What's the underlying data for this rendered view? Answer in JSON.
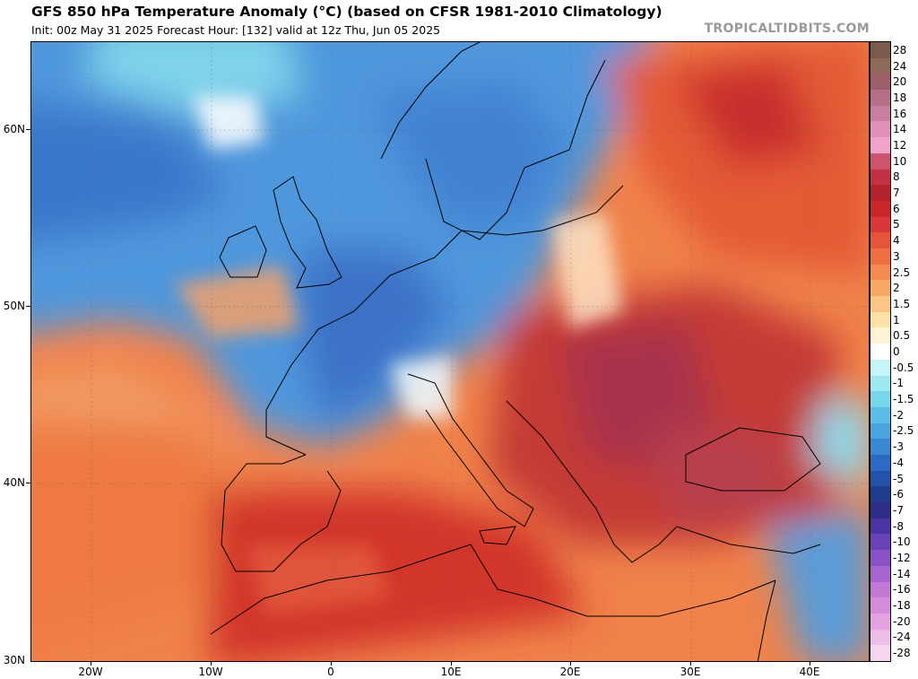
{
  "header": {
    "title": "GFS 850 hPa Temperature Anomaly (°C) (based on CFSR 1981-2010 Climatology)",
    "subtitle": "Init: 00z May 31 2025   Forecast Hour: [132]   valid at 12z Thu, Jun 05 2025",
    "brand": "TROPICALTIDBITS.COM"
  },
  "map": {
    "lat_labels": [
      "60N",
      "50N",
      "40N",
      "30N"
    ],
    "lon_labels": [
      "20W",
      "10W",
      "0",
      "10E",
      "20E",
      "30E",
      "40E"
    ]
  },
  "colorbar": {
    "labels": [
      "28",
      "24",
      "20",
      "18",
      "16",
      "14",
      "12",
      "10",
      "8",
      "7",
      "6",
      "5",
      "4",
      "3",
      "2.5",
      "2",
      "1.5",
      "1",
      "0.5",
      "0",
      "-0.5",
      "-1",
      "-1.5",
      "-2",
      "-2.5",
      "-3",
      "-4",
      "-5",
      "-6",
      "-7",
      "-8",
      "-10",
      "-12",
      "-14",
      "-16",
      "-18",
      "-20",
      "-24",
      "-28"
    ],
    "colors": [
      "#7a5a4a",
      "#8f6a5a",
      "#9c5f6a",
      "#b56f86",
      "#c97fa0",
      "#e08fb6",
      "#f0a3c8",
      "#d0536d",
      "#c43144",
      "#b3222f",
      "#c8282a",
      "#d8383a",
      "#e4553a",
      "#ee7040",
      "#f48a50",
      "#f8a865",
      "#fbc685",
      "#fde2a8",
      "#fff3d6",
      "#ffffff",
      "#c6f5f7",
      "#9ee9f0",
      "#78d6ea",
      "#5ebde6",
      "#4aa3de",
      "#3b87d2",
      "#2e6ac4",
      "#2452a8",
      "#1d3d8c",
      "#2d2f86",
      "#4a35a2",
      "#6a42b8",
      "#8a52c6",
      "#a766cf",
      "#c07ad6",
      "#d48ddb",
      "#e3a3e1",
      "#edbde8",
      "#f5d5ef"
    ]
  }
}
